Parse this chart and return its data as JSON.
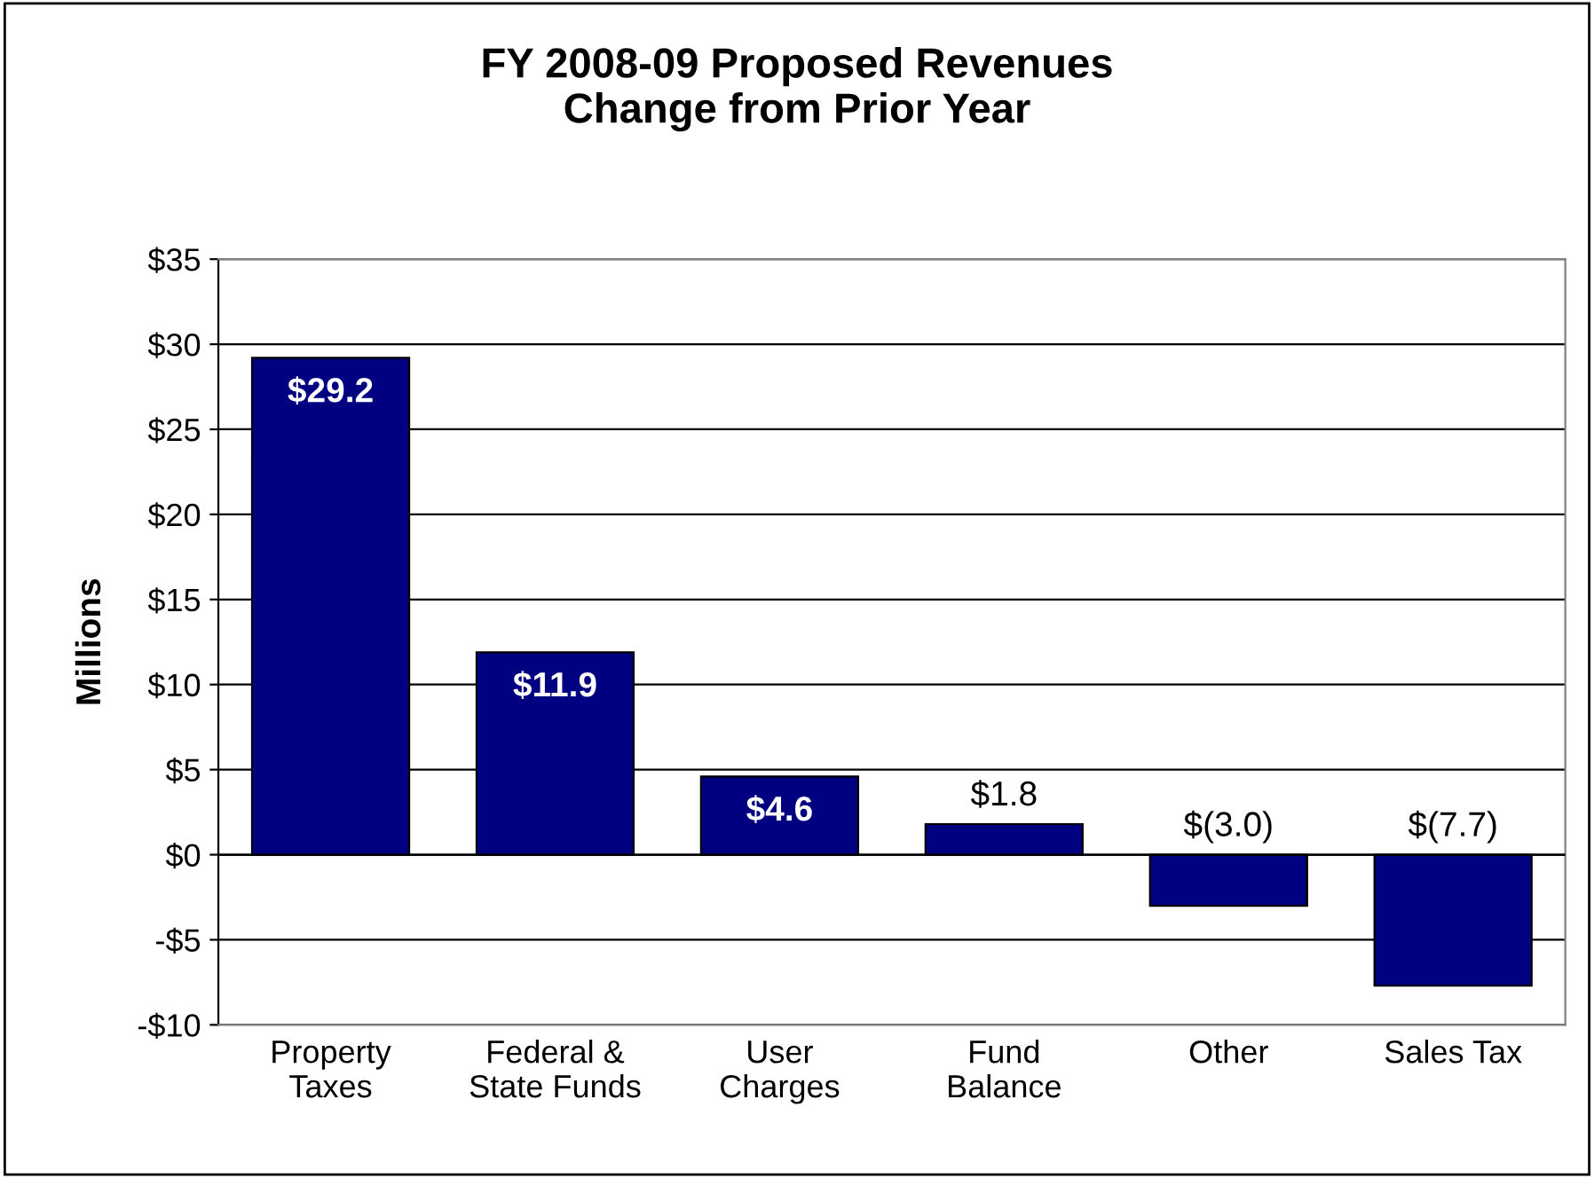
{
  "chart_data": {
    "type": "bar",
    "title": "FY 2008-09 Proposed Revenues\nChange from Prior Year",
    "ylabel": "Millions",
    "categories": [
      "Property\nTaxes",
      "Federal &\nState Funds",
      "User\nCharges",
      "Fund\nBalance",
      "Other",
      "Sales Tax"
    ],
    "values": [
      29.2,
      11.9,
      4.6,
      1.8,
      -3.0,
      -7.7
    ],
    "value_labels": [
      "$29.2",
      "$11.9",
      "$4.6",
      "$1.8",
      "$(3.0)",
      "$(7.7)"
    ],
    "color": "#000080",
    "ylim": [
      -10,
      35
    ],
    "yticks": [
      {
        "value": -10,
        "label": "-$10"
      },
      {
        "value": -5,
        "label": "-$5"
      },
      {
        "value": 0,
        "label": "$0"
      },
      {
        "value": 5,
        "label": "$5"
      },
      {
        "value": 10,
        "label": "$10"
      },
      {
        "value": 15,
        "label": "$15"
      },
      {
        "value": 20,
        "label": "$20"
      },
      {
        "value": 25,
        "label": "$25"
      },
      {
        "value": 30,
        "label": "$30"
      },
      {
        "value": 35,
        "label": "$35"
      }
    ],
    "grid": "y",
    "legend": false
  }
}
